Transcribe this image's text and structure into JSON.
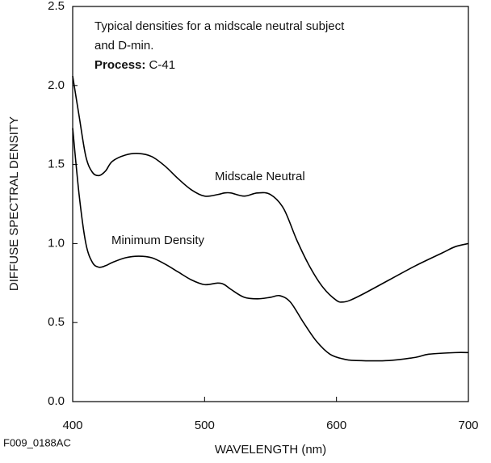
{
  "chart_data": {
    "type": "line",
    "annotation": [
      "Typical densities for a midscale neutral subject",
      "and D-min."
    ],
    "process_label": "Process:",
    "process": "C-41",
    "figure_id": "F009_0188AC",
    "x_label": "WAVELENGTH (nm)",
    "y_label": "DIFFUSE SPECTRAL DENSITY",
    "xlim": [
      400,
      700
    ],
    "ylim": [
      0,
      2.5
    ],
    "xticks": [
      400,
      500,
      600,
      700
    ],
    "yticks": [
      {
        "value": 0,
        "label": "0.0"
      },
      {
        "value": 0.5,
        "label": "0.5"
      },
      {
        "value": 1,
        "label": "1.0"
      },
      {
        "value": 1.5,
        "label": "1.5"
      },
      {
        "value": 2,
        "label": "2.0"
      },
      {
        "value": 2.5,
        "label": "2.5"
      }
    ],
    "series": [
      {
        "name": "Midscale Neutral",
        "color": "#000000",
        "x": [
          400,
          405,
          410,
          415,
          420,
          425,
          430,
          440,
          450,
          460,
          470,
          480,
          490,
          500,
          510,
          515,
          520,
          530,
          540,
          550,
          560,
          570,
          580,
          590,
          600,
          605,
          610,
          620,
          640,
          660,
          680,
          690,
          700
        ],
        "values": [
          2.06,
          1.8,
          1.55,
          1.45,
          1.43,
          1.46,
          1.52,
          1.56,
          1.57,
          1.55,
          1.49,
          1.41,
          1.34,
          1.3,
          1.31,
          1.32,
          1.32,
          1.3,
          1.32,
          1.31,
          1.22,
          1.02,
          0.85,
          0.72,
          0.64,
          0.63,
          0.64,
          0.68,
          0.77,
          0.86,
          0.94,
          0.98,
          1.0
        ]
      },
      {
        "name": "Minimum Density",
        "color": "#000000",
        "x": [
          400,
          405,
          410,
          415,
          420,
          425,
          430,
          440,
          450,
          460,
          470,
          480,
          490,
          500,
          510,
          515,
          520,
          530,
          540,
          550,
          557,
          565,
          575,
          585,
          595,
          605,
          615,
          640,
          660,
          670,
          690,
          700
        ],
        "values": [
          1.73,
          1.3,
          1.0,
          0.88,
          0.85,
          0.86,
          0.88,
          0.91,
          0.92,
          0.91,
          0.87,
          0.82,
          0.77,
          0.74,
          0.75,
          0.74,
          0.71,
          0.66,
          0.65,
          0.66,
          0.67,
          0.63,
          0.5,
          0.38,
          0.3,
          0.27,
          0.26,
          0.26,
          0.28,
          0.3,
          0.31,
          0.31
        ]
      }
    ]
  }
}
